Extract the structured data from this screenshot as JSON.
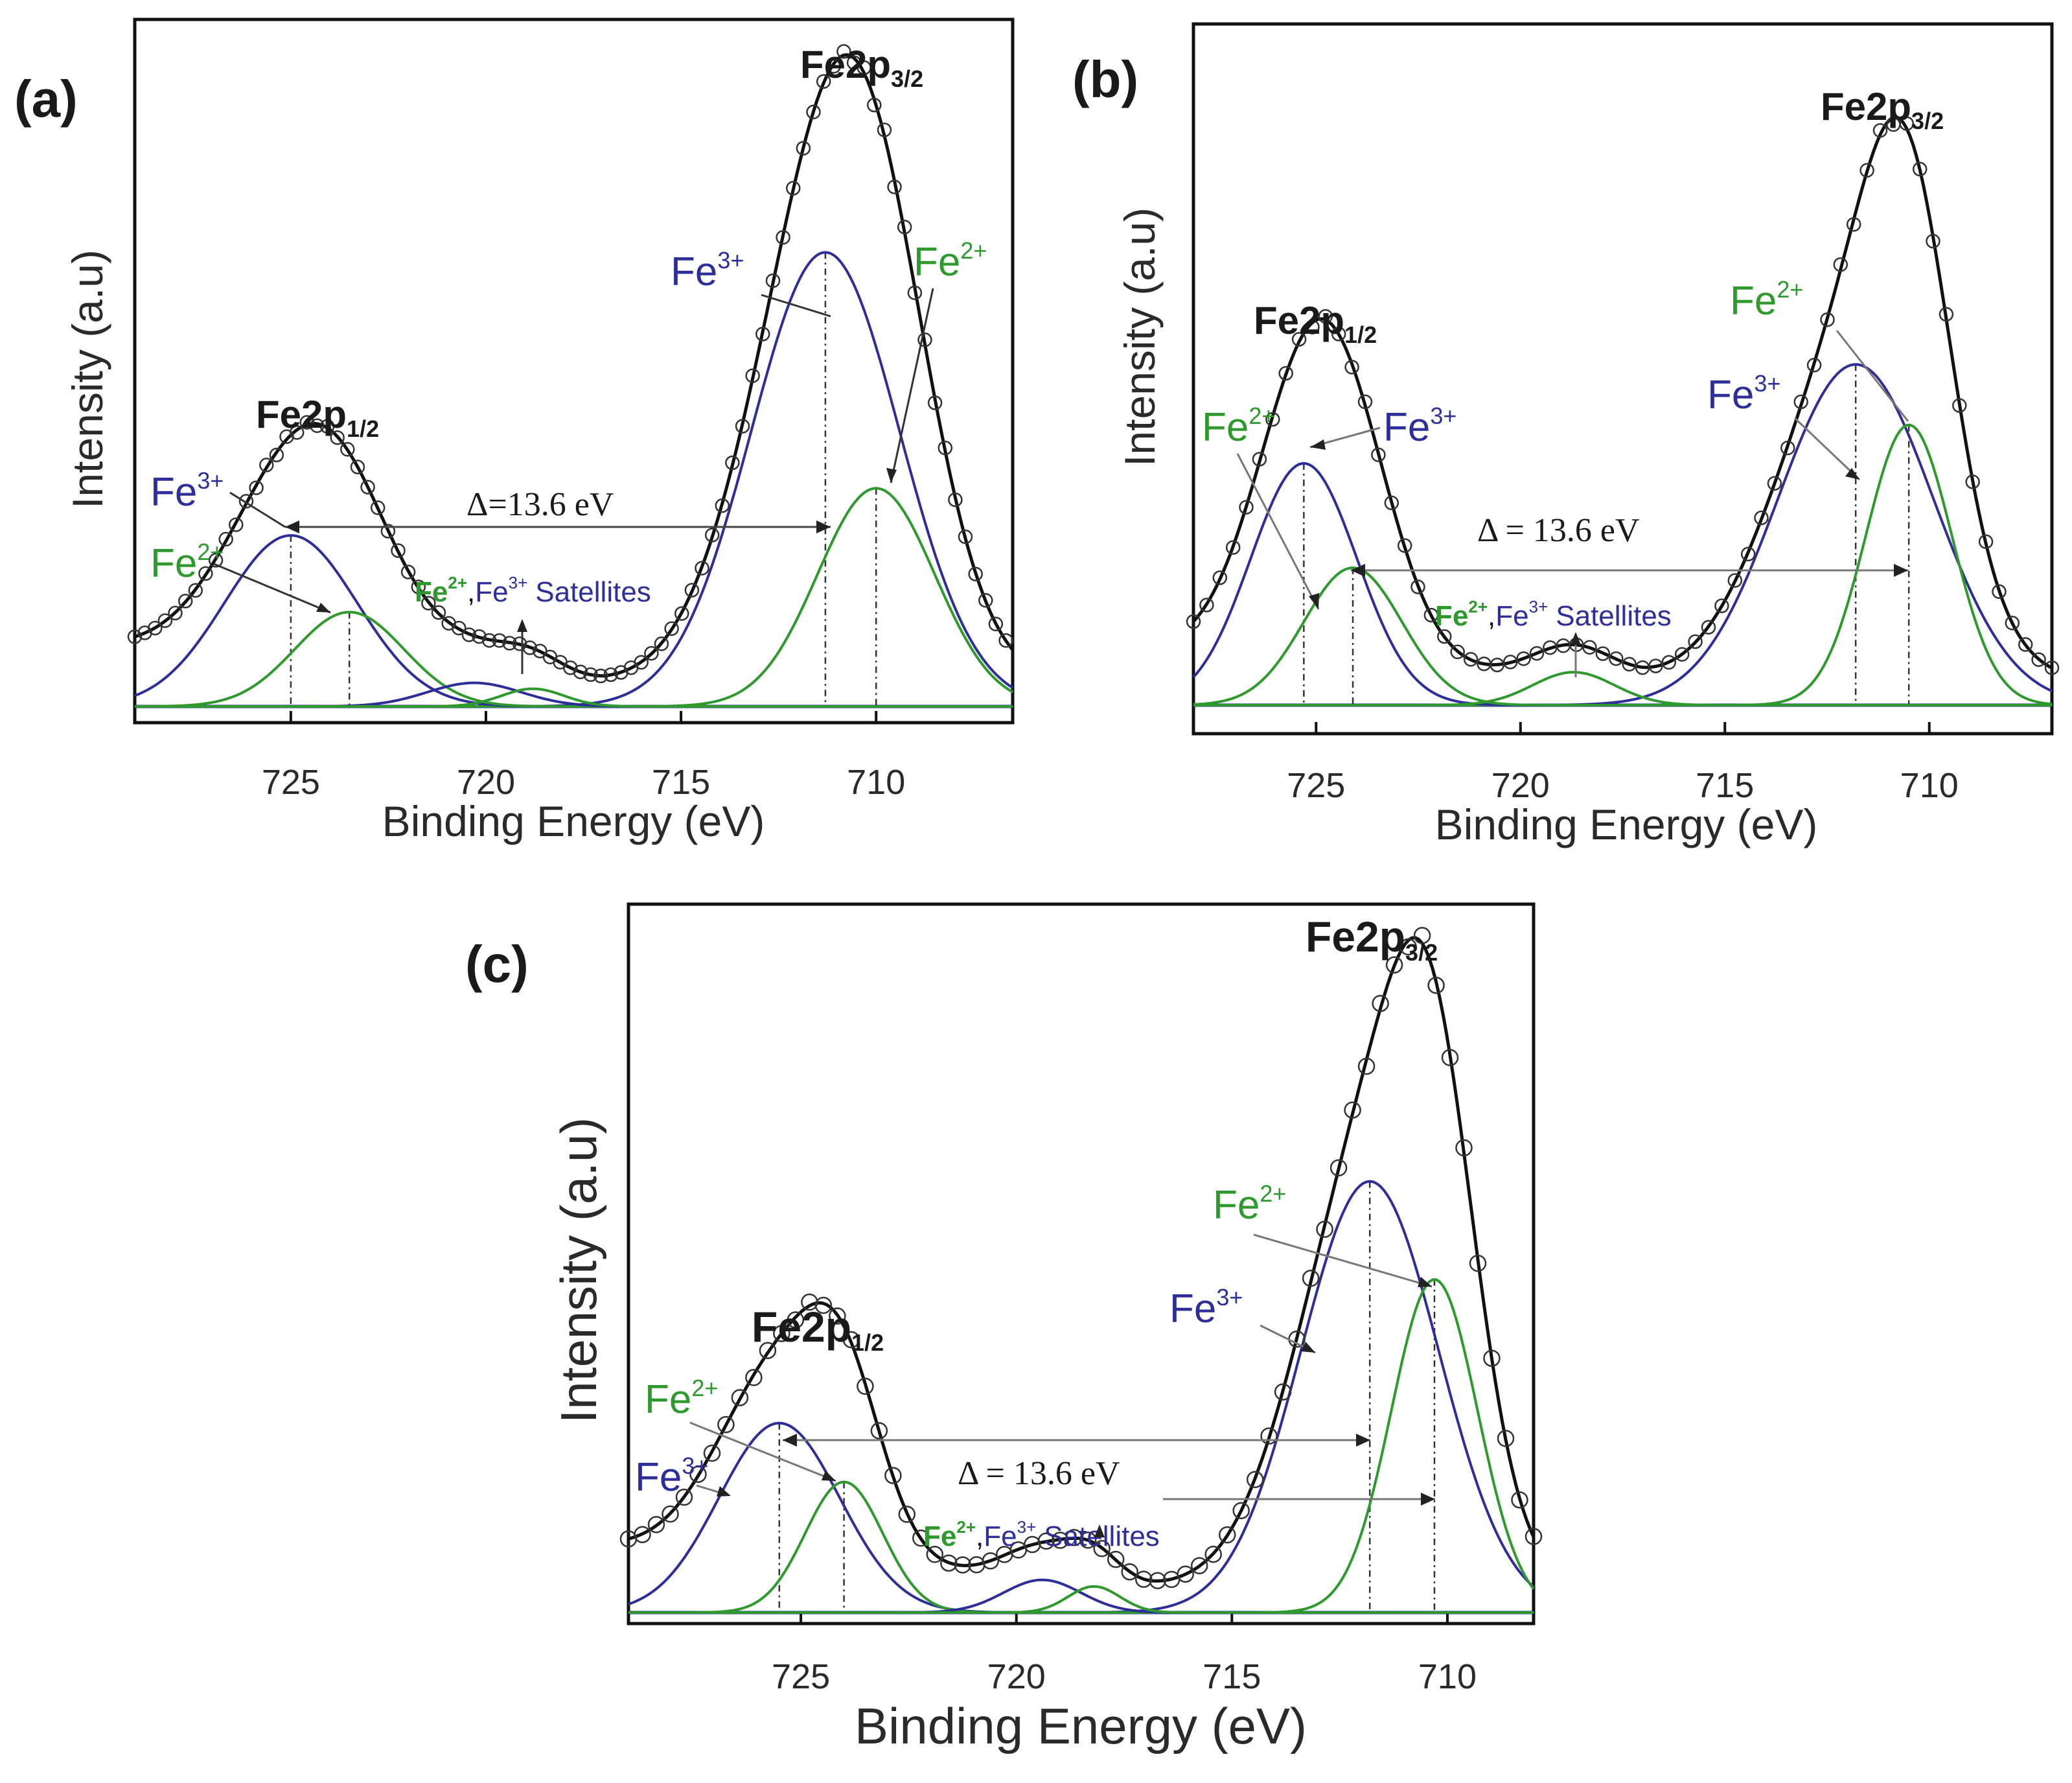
{
  "colors": {
    "fe3": "#2e2e9a",
    "fe2": "#2e9a2e",
    "envelope": "#111111",
    "baseline": "#1a1aa0",
    "marker": "#333333"
  },
  "figure": {
    "x_axis_label": "Binding Energy (eV)",
    "y_axis_label": "Intensity (a.u)",
    "peak_main": "Fe2p",
    "sub_32": "3/2",
    "sub_12": "1/2",
    "ion_base": "Fe",
    "sup_3": "3+",
    "sup_2": "2+",
    "sat_word": "Satellites",
    "sat_sep": ",",
    "x_ticks": [
      "725",
      "720",
      "715",
      "710"
    ]
  },
  "chart_data": [
    {
      "panel": "(a)",
      "type": "line",
      "xlabel": "Binding Energy (eV)",
      "ylabel": "Intensity (a.u)",
      "xlim": [
        729,
        706.5
      ],
      "ylim": [
        0,
        1.0
      ],
      "delta_label": "Δ=13.6 eV",
      "components": [
        {
          "name": "Fe3+ 2p3/2",
          "color": "fe3",
          "center": 711.3,
          "width": 1.9,
          "height": 0.77
        },
        {
          "name": "Fe2+ 2p3/2",
          "color": "fe2",
          "center": 710.0,
          "width": 1.5,
          "height": 0.37
        },
        {
          "name": "Fe3+ 2p1/2",
          "color": "fe3",
          "center": 725.0,
          "width": 1.7,
          "height": 0.29
        },
        {
          "name": "Fe2+ 2p1/2",
          "color": "fe2",
          "center": 723.5,
          "width": 1.4,
          "height": 0.16
        },
        {
          "name": "Fe3+ satellite",
          "color": "fe3",
          "center": 720.3,
          "width": 1.2,
          "height": 0.04
        },
        {
          "name": "Fe2+ satellite",
          "color": "fe2",
          "center": 718.8,
          "width": 0.8,
          "height": 0.03
        }
      ],
      "markers": [
        725.0,
        723.5,
        711.3,
        710.0
      ]
    },
    {
      "panel": "(b)",
      "type": "line",
      "xlabel": "Binding Energy (eV)",
      "ylabel": "Intensity (a.u)",
      "xlim": [
        728,
        707
      ],
      "ylim": [
        0,
        1.0
      ],
      "delta_label": "Δ = 13.6 eV",
      "components": [
        {
          "name": "Fe3+ 2p3/2",
          "color": "fe3",
          "center": 711.8,
          "width": 1.9,
          "height": 0.62
        },
        {
          "name": "Fe2+ 2p3/2",
          "color": "fe2",
          "center": 710.5,
          "width": 1.05,
          "height": 0.51
        },
        {
          "name": "Fe3+ 2p1/2",
          "color": "fe3",
          "center": 725.3,
          "width": 1.3,
          "height": 0.44
        },
        {
          "name": "Fe2+ 2p1/2",
          "color": "fe2",
          "center": 724.1,
          "width": 1.2,
          "height": 0.25
        },
        {
          "name": "Fe2+ satellite",
          "color": "fe2",
          "center": 718.7,
          "width": 1.0,
          "height": 0.06
        }
      ],
      "markers": [
        725.3,
        724.1,
        711.8,
        710.5
      ]
    },
    {
      "panel": "(c)",
      "type": "line",
      "xlabel": "Binding Energy (eV)",
      "ylabel": "Intensity (a.u)",
      "xlim": [
        729,
        708
      ],
      "ylim": [
        0,
        1.0
      ],
      "delta_label": "Δ = 13.6 eV",
      "components": [
        {
          "name": "Fe3+ 2p3/2",
          "color": "fe3",
          "center": 711.8,
          "width": 1.6,
          "height": 0.66
        },
        {
          "name": "Fe2+ 2p3/2",
          "color": "fe2",
          "center": 710.3,
          "width": 1.0,
          "height": 0.51
        },
        {
          "name": "Fe3+ 2p1/2",
          "color": "fe3",
          "center": 725.5,
          "width": 1.4,
          "height": 0.29
        },
        {
          "name": "Fe2+ 2p1/2",
          "color": "fe2",
          "center": 724.0,
          "width": 0.9,
          "height": 0.2
        },
        {
          "name": "Fe3+ satellite",
          "color": "fe3",
          "center": 719.4,
          "width": 0.9,
          "height": 0.05
        },
        {
          "name": "Fe2+ satellite",
          "color": "fe2",
          "center": 718.2,
          "width": 0.6,
          "height": 0.04
        }
      ],
      "markers": [
        725.5,
        724.0,
        711.8,
        710.3
      ]
    }
  ]
}
